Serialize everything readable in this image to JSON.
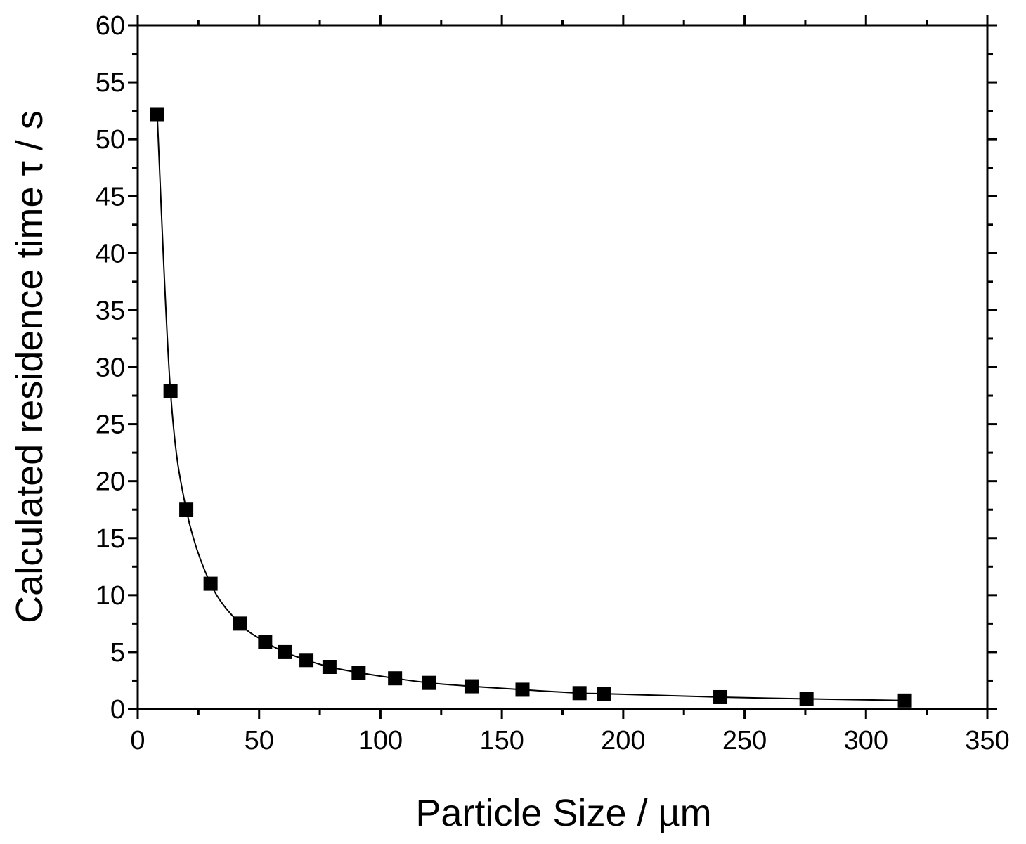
{
  "chart_data": {
    "type": "line",
    "title": "",
    "xlabel": "Particle Size / µm",
    "ylabel": "Calculated residence time τ / s",
    "xlim": [
      0,
      350
    ],
    "ylim": [
      0,
      60
    ],
    "x_ticks": [
      0,
      50,
      100,
      150,
      200,
      250,
      300,
      350
    ],
    "x_tick_labels": [
      "0",
      "50",
      "100",
      "150",
      "200",
      "250",
      "300",
      "350"
    ],
    "y_ticks": [
      0,
      5,
      10,
      15,
      20,
      25,
      30,
      35,
      40,
      45,
      50,
      55,
      60
    ],
    "y_tick_labels": [
      "0",
      "5",
      "10",
      "15",
      "20",
      "25",
      "30",
      "35",
      "40",
      "45",
      "50",
      "55",
      "60"
    ],
    "grid": false,
    "legend": "none",
    "marker": "square",
    "line_color": "#000000",
    "marker_color": "#000000",
    "series": [
      {
        "x": [
          8,
          13.5,
          20,
          30,
          42,
          52.5,
          60.5,
          69.5,
          79,
          91,
          106,
          120,
          137.5,
          158.5,
          182,
          192,
          240,
          275.5,
          316
        ],
        "y": [
          52.2,
          27.9,
          17.5,
          11.0,
          7.5,
          5.9,
          5.0,
          4.3,
          3.7,
          3.2,
          2.7,
          2.3,
          2.0,
          1.7,
          1.4,
          1.35,
          1.05,
          0.9,
          0.75
        ]
      }
    ]
  }
}
